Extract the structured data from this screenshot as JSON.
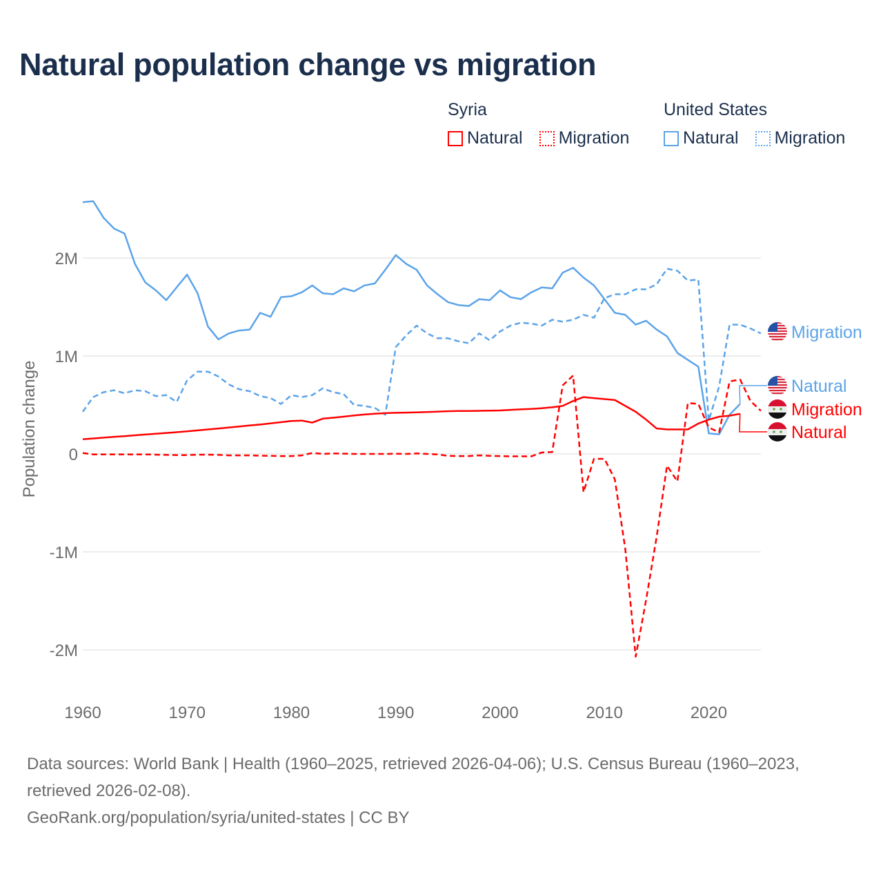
{
  "title": "Natural population change vs migration",
  "legend": {
    "groups": [
      {
        "name": "Syria",
        "items": [
          {
            "label": "Natural",
            "color": "#ff0000",
            "style": "solid"
          },
          {
            "label": "Migration",
            "color": "#ff0000",
            "style": "dotted"
          }
        ]
      },
      {
        "name": "United States",
        "items": [
          {
            "label": "Natural",
            "color": "#5ba3e8",
            "style": "solid"
          },
          {
            "label": "Migration",
            "color": "#5ba3e8",
            "style": "dotted"
          }
        ]
      }
    ]
  },
  "footer": {
    "sources": "Data sources: World Bank | Health (1960–2025, retrieved 2026-04-06); U.S. Census Bureau (1960–2023, retrieved 2026-02-08).",
    "credit": "GeoRank.org/population/syria/united-states | CC BY"
  },
  "chart_data": {
    "type": "line",
    "title": "Natural population change vs migration",
    "xlabel": "",
    "ylabel": "Population change",
    "xlim": [
      1960,
      2025
    ],
    "ylim": [
      -2300000,
      2700000
    ],
    "x_ticks": [
      1960,
      1970,
      1980,
      1990,
      2000,
      2010,
      2020
    ],
    "x_tick_labels": [
      "1960",
      "1970",
      "1980",
      "1990",
      "2000",
      "2010",
      "2020"
    ],
    "y_ticks": [
      2000000,
      1000000,
      0,
      -1000000,
      -2000000
    ],
    "y_tick_labels": [
      "2M",
      "1M",
      "0",
      "-1M",
      "-2M"
    ],
    "grid": true,
    "legend_position": "top-right",
    "series": [
      {
        "name": "United States Natural",
        "end_label": "Natural",
        "flag": "us-flag",
        "color": "#5ba3e8",
        "dash": "solid",
        "start_year": 1960,
        "values": [
          2570000,
          2580000,
          2410000,
          2300000,
          2250000,
          1940000,
          1750000,
          1670000,
          1570000,
          1700000,
          1830000,
          1640000,
          1300000,
          1170000,
          1230000,
          1260000,
          1270000,
          1440000,
          1400000,
          1600000,
          1610000,
          1650000,
          1720000,
          1640000,
          1630000,
          1690000,
          1660000,
          1720000,
          1740000,
          1880000,
          2030000,
          1940000,
          1880000,
          1720000,
          1630000,
          1550000,
          1520000,
          1510000,
          1580000,
          1570000,
          1670000,
          1600000,
          1580000,
          1650000,
          1700000,
          1690000,
          1850000,
          1900000,
          1800000,
          1720000,
          1580000,
          1440000,
          1420000,
          1320000,
          1360000,
          1270000,
          1200000,
          1030000,
          960000,
          890000,
          210000,
          200000,
          400000,
          510000
        ]
      },
      {
        "name": "United States Migration",
        "end_label": "Migration",
        "flag": "us-flag",
        "color": "#5ba3e8",
        "dash": "dashed",
        "start_year": 1960,
        "values": [
          430000,
          580000,
          630000,
          650000,
          620000,
          650000,
          640000,
          590000,
          600000,
          530000,
          750000,
          840000,
          840000,
          790000,
          710000,
          660000,
          640000,
          590000,
          570000,
          510000,
          600000,
          580000,
          600000,
          670000,
          630000,
          610000,
          500000,
          490000,
          470000,
          400000,
          1090000,
          1210000,
          1310000,
          1230000,
          1180000,
          1180000,
          1150000,
          1130000,
          1230000,
          1160000,
          1250000,
          1310000,
          1340000,
          1330000,
          1310000,
          1370000,
          1350000,
          1370000,
          1420000,
          1390000,
          1590000,
          1630000,
          1630000,
          1680000,
          1680000,
          1730000,
          1890000,
          1870000,
          1770000,
          1780000,
          340000,
          690000,
          1320000,
          1320000,
          1280000,
          1230000
        ]
      },
      {
        "name": "Syria Migration",
        "end_label": "Migration",
        "flag": "syria-flag",
        "color": "#ff0000",
        "dash": "dashed",
        "start_year": 1960,
        "values": [
          10000,
          -5000,
          -5000,
          -5000,
          -5000,
          -5000,
          -5000,
          -8000,
          -10000,
          -12000,
          -12000,
          -8000,
          -8000,
          -10000,
          -15000,
          -15000,
          -15000,
          -18000,
          -20000,
          -22000,
          -22000,
          -15000,
          10000,
          0,
          5000,
          3000,
          0,
          0,
          0,
          0,
          2000,
          0,
          5000,
          0,
          -5000,
          -20000,
          -22000,
          -22000,
          -15000,
          -20000,
          -22000,
          -25000,
          -25000,
          -25000,
          15000,
          20000,
          700000,
          800000,
          -390000,
          -50000,
          -50000,
          -260000,
          -970000,
          -2070000,
          -1490000,
          -850000,
          -120000,
          -280000,
          520000,
          510000,
          270000,
          220000,
          740000,
          760000,
          540000,
          440000
        ]
      },
      {
        "name": "Syria Natural",
        "end_label": "Natural",
        "flag": "syria-flag",
        "color": "#ff0000",
        "dash": "solid",
        "start_year": 1960,
        "values": [
          150000,
          158000,
          166000,
          174000,
          182000,
          190000,
          198000,
          206000,
          214000,
          222000,
          230000,
          240000,
          250000,
          260000,
          270000,
          280000,
          290000,
          300000,
          312000,
          324000,
          336000,
          340000,
          320000,
          360000,
          370000,
          380000,
          392000,
          402000,
          410000,
          416000,
          420000,
          422000,
          424000,
          428000,
          432000,
          436000,
          438000,
          438000,
          440000,
          442000,
          444000,
          450000,
          455000,
          460000,
          466000,
          476000,
          490000,
          540000,
          580000,
          570000,
          560000,
          550000,
          490000,
          430000,
          350000,
          260000,
          250000,
          250000,
          250000,
          310000,
          350000,
          380000,
          390000,
          410000
        ]
      }
    ],
    "end_labels_order": [
      "United States Migration",
      "United States Natural",
      "Syria Migration",
      "Syria Natural"
    ]
  }
}
